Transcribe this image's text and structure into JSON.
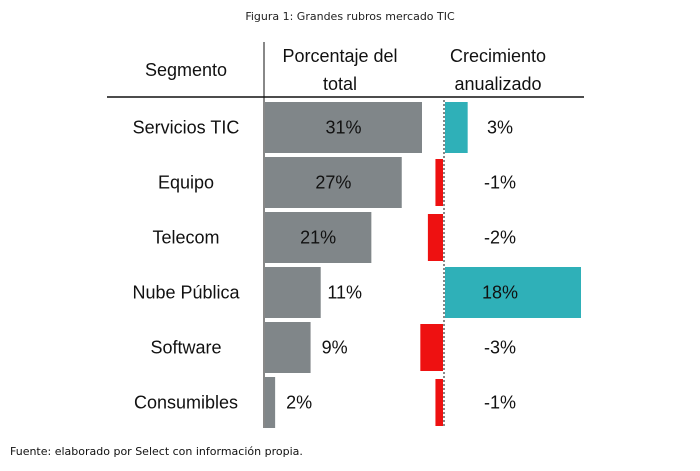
{
  "figure_caption": "Figura 1: Grandes rubros mercado TIC",
  "source_note": "Fuente: elaborado por Select con información propia.",
  "headers": {
    "segment": "Segmento",
    "share_line1": "Porcentaje del",
    "share_line2": "total",
    "growth_line1": "Crecimiento",
    "growth_line2": "anualizado"
  },
  "colors": {
    "share_bar": "#808689",
    "growth_positive": "#2fb0b8",
    "growth_negative": "#ee1111",
    "divider": "#111111"
  },
  "chart_data": {
    "type": "bar",
    "categories": [
      "Servicios TIC",
      "Equipo",
      "Telecom",
      "Nube Pública",
      "Software",
      "Consumibles"
    ],
    "series": [
      {
        "name": "Porcentaje del total",
        "values": [
          31,
          27,
          21,
          11,
          9,
          2
        ],
        "labels": [
          "31%",
          "27%",
          "21%",
          "11%",
          "9%",
          "2%"
        ]
      },
      {
        "name": "Crecimiento anualizado",
        "values": [
          3,
          -1,
          -2,
          18,
          -3,
          -1
        ],
        "labels": [
          "3%",
          "-1%",
          "-2%",
          "18%",
          "-3%",
          "-1%"
        ]
      }
    ],
    "share_range": [
      0,
      31
    ],
    "growth_range": [
      -3,
      18
    ]
  }
}
